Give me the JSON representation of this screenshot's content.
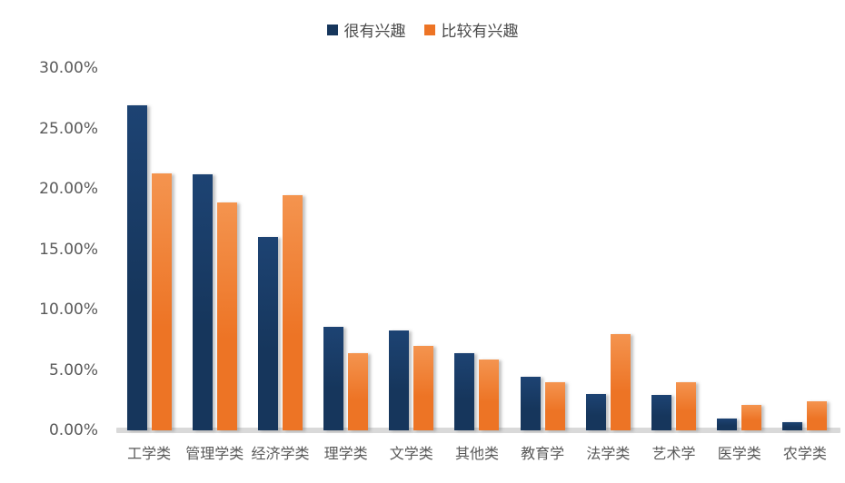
{
  "chart_data": {
    "type": "bar",
    "title": "",
    "categories": [
      "工学类",
      "管理学类",
      "经济学类",
      "理学类",
      "文学类",
      "其他类",
      "教育学",
      "法学类",
      "艺术学",
      "医学类",
      "农学类"
    ],
    "series": [
      {
        "key": "very-interested",
        "name": "很有兴趣",
        "color": "#16365c",
        "color_light": "#1d4373",
        "values": [
          26.9,
          21.2,
          16.0,
          8.6,
          8.3,
          6.4,
          4.4,
          3.0,
          2.9,
          1.0,
          0.7
        ]
      },
      {
        "key": "somewhat-interested",
        "name": "比较有兴趣",
        "color": "#ed7425",
        "color_light": "#f4944f",
        "values": [
          21.3,
          18.9,
          19.5,
          6.4,
          7.0,
          5.9,
          4.0,
          8.0,
          4.0,
          2.1,
          2.4
        ]
      }
    ],
    "unit": "%",
    "ylim": [
      0,
      30
    ],
    "y_ticks": [
      "0.00%",
      "5.00%",
      "10.00%",
      "15.00%",
      "20.00%",
      "25.00%",
      "30.00%"
    ],
    "grid": false,
    "legend_position": "top",
    "axis_label_color": "#595959",
    "baseline_color": "#d9d9d9"
  }
}
